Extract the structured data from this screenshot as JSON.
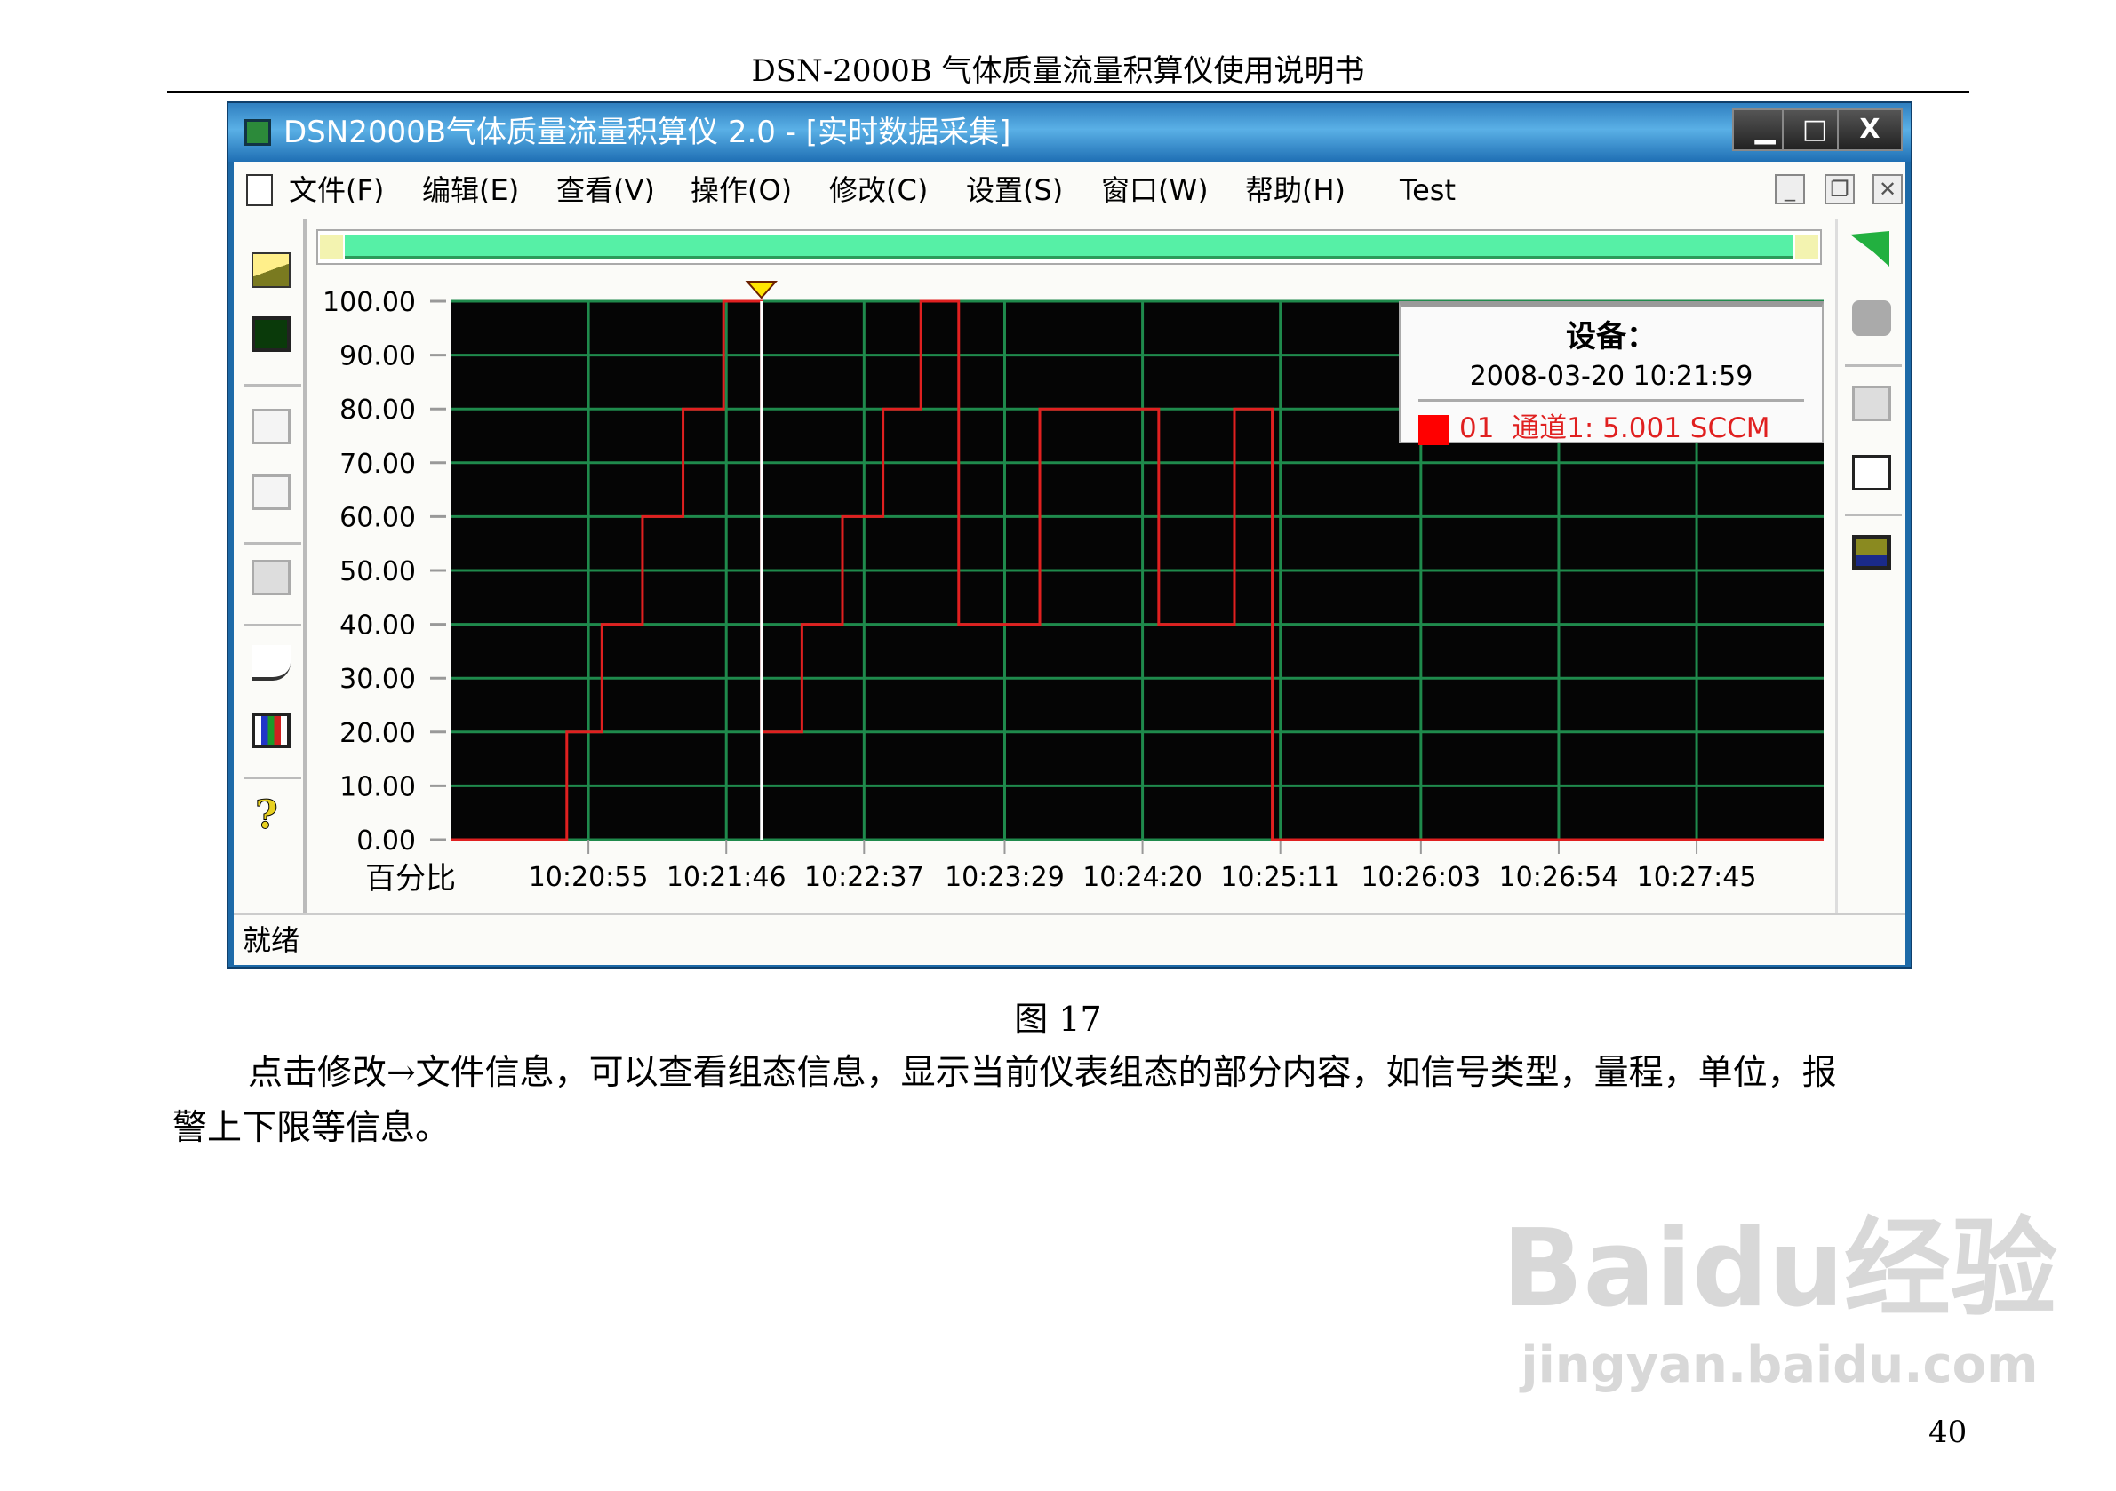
{
  "document": {
    "header": "DSN-2000B 气体质量流量积算仪使用说明书",
    "caption": "图 17",
    "paragraph_line1": "点击修改→文件信息，可以查看组态信息，显示当前仪表组态的部分内容，如信号类型，量程，单位，报",
    "paragraph_line2": "警上下限等信息。",
    "page_number": "40",
    "watermark": {
      "brand": "Baidu经验",
      "url": "jingyan.baidu.com"
    }
  },
  "window": {
    "title": "DSN2000B气体质量流量积算仪 2.0 - [实时数据采集]",
    "minimize": "▁",
    "maximize": "□",
    "close": "X",
    "menu": [
      "文件(F)",
      "编辑(E)",
      "查看(V)",
      "操作(O)",
      "修改(C)",
      "设置(S)",
      "窗口(W)",
      "帮助(H)",
      "Test"
    ],
    "mdi_buttons": [
      "_",
      "❐",
      "✕"
    ],
    "left_toolbar": [
      "open-folder-icon",
      "chart-monitor-icon",
      "table-grid-icon",
      "list-icon",
      "edit-doc-icon",
      "connect-cable-icon",
      "display-rgb-icon",
      "help-icon"
    ],
    "right_toolbar": [
      "exit-arrow-icon",
      "stop-icon",
      "edit-doc-icon",
      "calendar-download-icon",
      "save-disk-icon"
    ],
    "status": "就绪"
  },
  "legend": {
    "title": "设备：",
    "timestamp": "2008-03-20 10:21:59",
    "entry": "01  通道1: 5.001 SCCM",
    "entry_color": "#ff0000"
  },
  "chart_data": {
    "type": "line",
    "step": true,
    "ylabel": "百分比",
    "ylim": [
      0,
      100
    ],
    "yticks": [
      "0.00",
      "10.00",
      "20.00",
      "30.00",
      "40.00",
      "50.00",
      "60.00",
      "70.00",
      "80.00",
      "90.00",
      "100.00"
    ],
    "xlim": [
      "10:20:04",
      "10:28:32"
    ],
    "xticks": [
      "10:20:55",
      "10:21:46",
      "10:22:37",
      "10:23:29",
      "10:24:20",
      "10:25:11",
      "10:26:03",
      "10:26:54",
      "10:27:45"
    ],
    "cursor": "10:21:59",
    "grid": true,
    "colors": {
      "background": "#050505",
      "grid": "#1f8a4c",
      "series": "#e02020",
      "cursor": "#ffffff"
    },
    "series": [
      {
        "name": "01 通道1",
        "points": [
          [
            "10:20:04",
            0
          ],
          [
            "10:20:47",
            20
          ],
          [
            "10:21:00",
            40
          ],
          [
            "10:21:15",
            60
          ],
          [
            "10:21:30",
            80
          ],
          [
            "10:21:45",
            100
          ],
          [
            "10:21:59",
            20
          ],
          [
            "10:22:14",
            40
          ],
          [
            "10:22:29",
            60
          ],
          [
            "10:22:44",
            80
          ],
          [
            "10:22:58",
            100
          ],
          [
            "10:23:12",
            40
          ],
          [
            "10:23:42",
            80
          ],
          [
            "10:24:26",
            40
          ],
          [
            "10:24:54",
            80
          ],
          [
            "10:25:08",
            0
          ],
          [
            "10:28:32",
            0
          ]
        ]
      }
    ]
  }
}
